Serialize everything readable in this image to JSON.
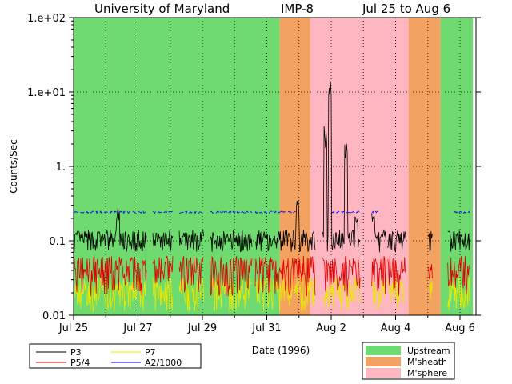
{
  "chart_data": {
    "type": "line",
    "title_left": "University of Maryland",
    "title_mid": "IMP-8",
    "title_right": "Jul 25 to Aug 6",
    "xlabel": "Date (1996)",
    "ylabel": "Counts/Sec",
    "y_scale": "log",
    "ylim": [
      0.01,
      100
    ],
    "y_tick_labels": [
      "1.e+02",
      "1.e+01",
      "1.",
      "0.1",
      "0.01"
    ],
    "y_tick_values": [
      100,
      10,
      1,
      0.1,
      0.01
    ],
    "xlim_days": [
      0,
      12.6
    ],
    "x_tick_labels": [
      "Jul 25",
      "Jul 27",
      "Jul 29",
      "Jul 31",
      "Aug 2",
      "Aug 4",
      "Aug 6"
    ],
    "x_tick_days": [
      0,
      2,
      4,
      6,
      8,
      10,
      12
    ],
    "grid": true,
    "regions": [
      {
        "label": "Upstream",
        "from": 0,
        "to": 6.4,
        "color": "#6fda6f"
      },
      {
        "label": "M'sheath",
        "from": 6.4,
        "to": 7.35,
        "color": "#f4a262"
      },
      {
        "label": "M'sphere",
        "from": 7.35,
        "to": 10.4,
        "color": "#ffb6c1"
      },
      {
        "label": "M'sheath",
        "from": 10.4,
        "to": 11.4,
        "color": "#f4a262"
      },
      {
        "label": "Upstream",
        "from": 11.4,
        "to": 12.4,
        "color": "#6fda6f"
      }
    ],
    "series": [
      {
        "name": "P3",
        "color": "#000000"
      },
      {
        "name": "P5/4",
        "color": "#e00000"
      },
      {
        "name": "P7",
        "color": "#e8e800"
      },
      {
        "name": "A2/1000",
        "color": "#0000ff"
      }
    ],
    "data_gaps": [
      [
        2.28,
        2.45
      ],
      [
        3.1,
        3.28
      ],
      [
        4.05,
        4.22
      ],
      [
        5.55,
        5.62
      ],
      [
        7.5,
        7.72
      ],
      [
        8.9,
        9.25
      ],
      [
        9.7,
        9.75
      ],
      [
        10.3,
        11.0
      ],
      [
        11.15,
        11.6
      ]
    ],
    "p3_spikes": [
      {
        "day": 1.38,
        "value": 0.28
      },
      {
        "day": 6.95,
        "value": 0.38
      },
      {
        "day": 7.82,
        "value": 3.5
      },
      {
        "day": 7.95,
        "value": 14.5
      },
      {
        "day": 8.45,
        "value": 2.2
      },
      {
        "day": 8.78,
        "value": 0.22
      },
      {
        "day": 9.3,
        "value": 0.25
      }
    ],
    "legend_series": {
      "col1": [
        "P3",
        "P5/4"
      ],
      "col2": [
        "P7",
        "A2/1000"
      ]
    },
    "legend_regions": [
      "Upstream",
      "M'sheath",
      "M'sphere"
    ]
  }
}
